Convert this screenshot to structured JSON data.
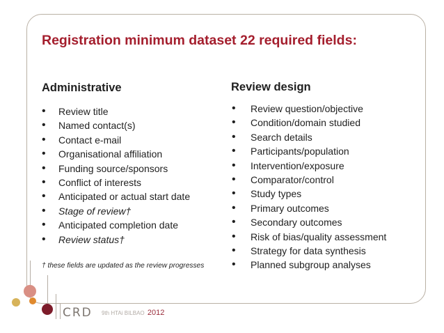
{
  "slide": {
    "title": "Registration minimum dataset 22 required fields:",
    "administrative": {
      "heading": "Administrative",
      "items": [
        {
          "text": "Review title"
        },
        {
          "text": "Named contact(s)"
        },
        {
          "text": "Contact e-mail"
        },
        {
          "text": "Organisational affiliation"
        },
        {
          "text": "Funding source/sponsors"
        },
        {
          "text": "Conflict of interests"
        },
        {
          "text": "Anticipated or actual start date"
        },
        {
          "text": "Stage of review†"
        },
        {
          "text": "Anticipated completion date"
        },
        {
          "text": "Review status†"
        }
      ],
      "footnote": "† these fields are updated as the review progresses"
    },
    "review_design": {
      "heading": "Review design",
      "items": [
        {
          "text": "Review question/objective"
        },
        {
          "text": "Condition/domain studied"
        },
        {
          "text": "Search details"
        },
        {
          "text": "Participants/population"
        },
        {
          "text": "Intervention/exposure"
        },
        {
          "text": "Comparator/control"
        },
        {
          "text": "Study types"
        },
        {
          "text": "Primary outcomes"
        },
        {
          "text": "Secondary outcomes"
        },
        {
          "text": "Risk of bias/quality assessment"
        },
        {
          "text": "Strategy for data synthesis"
        },
        {
          "text": "Planned subgroup analyses"
        }
      ]
    },
    "bullet_glyph": "•"
  },
  "footer": {
    "crd_logo": "CRD",
    "conference_logo": {
      "text": "9th HTAi BILBAO",
      "year": "2012"
    }
  },
  "colors": {
    "title": "#a41e2d",
    "frame": "#b9b0a4",
    "text": "#1f1f1f",
    "accent_maroon": "#7d1c2a",
    "accent_gold": "#d7b35a",
    "accent_rose": "#d98f84",
    "accent_orange": "#e08a2e"
  }
}
